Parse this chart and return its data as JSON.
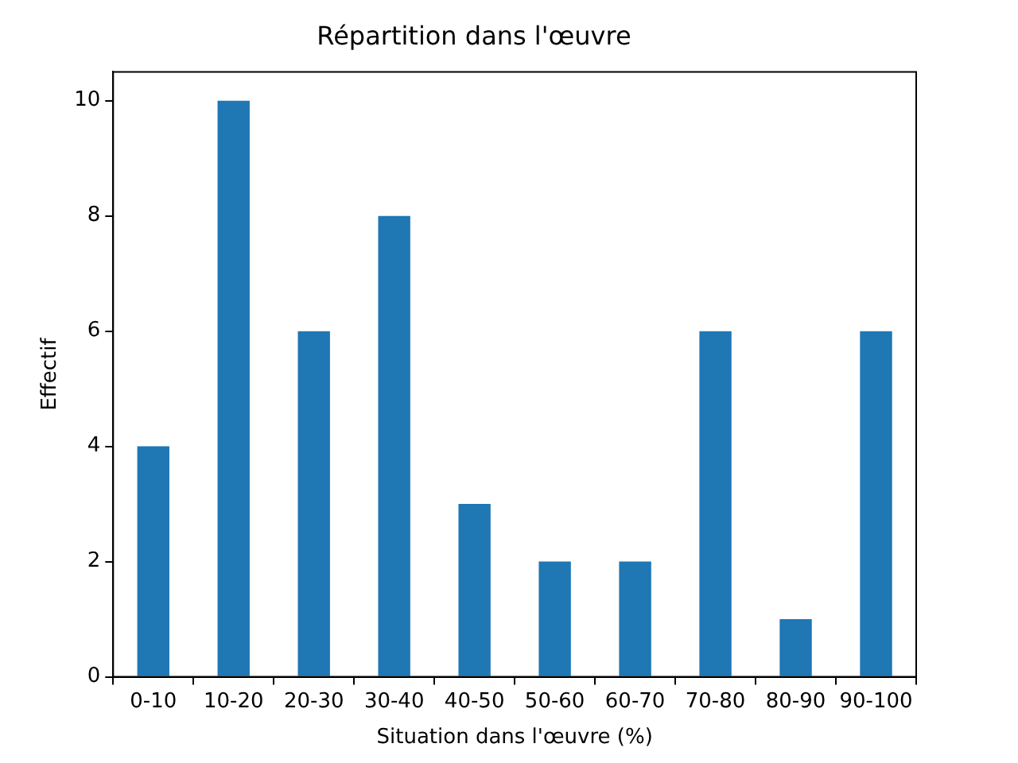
{
  "chart_data": {
    "type": "bar",
    "title": "Répartition dans l'œuvre",
    "xlabel": "Situation dans l'œuvre (%)",
    "ylabel": "Effectif",
    "categories": [
      "0-10",
      "10-20",
      "20-30",
      "30-40",
      "40-50",
      "50-60",
      "60-70",
      "70-80",
      "80-90",
      "90-100"
    ],
    "values": [
      4,
      10,
      6,
      8,
      3,
      2,
      2,
      6,
      1,
      6
    ],
    "color": "#1f77b4",
    "ylim": [
      0,
      10.5
    ],
    "yticks": [
      0,
      2,
      4,
      6,
      8,
      10
    ],
    "grid": false,
    "legend": false
  }
}
